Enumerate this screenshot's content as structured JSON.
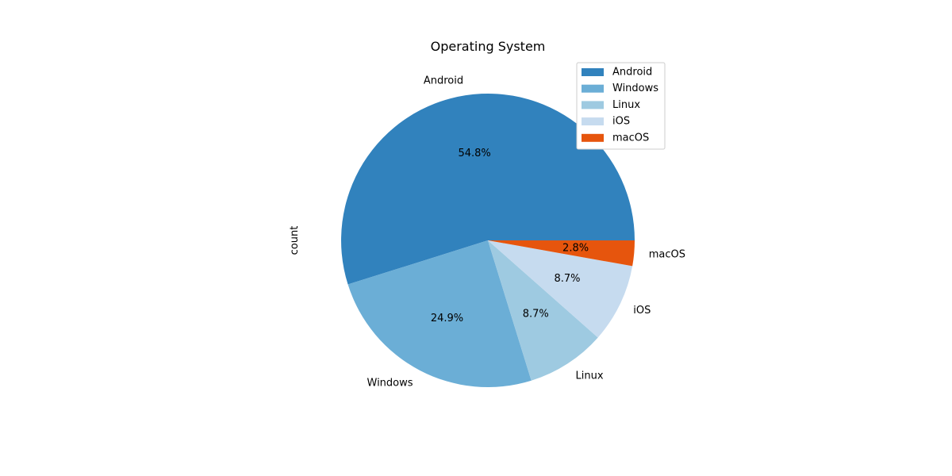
{
  "chart_data": {
    "type": "pie",
    "title": "Operating System",
    "ylabel": "count",
    "categories": [
      "Android",
      "Windows",
      "Linux",
      "iOS",
      "macOS"
    ],
    "values": [
      54.8,
      24.9,
      8.7,
      8.7,
      2.8
    ],
    "value_labels": [
      "54.8%",
      "24.9%",
      "8.7%",
      "8.7%",
      "2.8%"
    ],
    "colors": [
      "#3182bd",
      "#6baed6",
      "#9ecae1",
      "#c6dbef",
      "#e6550d"
    ],
    "legend": {
      "placement": "top-right",
      "entries": [
        "Android",
        "Windows",
        "Linux",
        "iOS",
        "macOS"
      ]
    },
    "start_angle": 0,
    "direction": "counterclockwise"
  }
}
